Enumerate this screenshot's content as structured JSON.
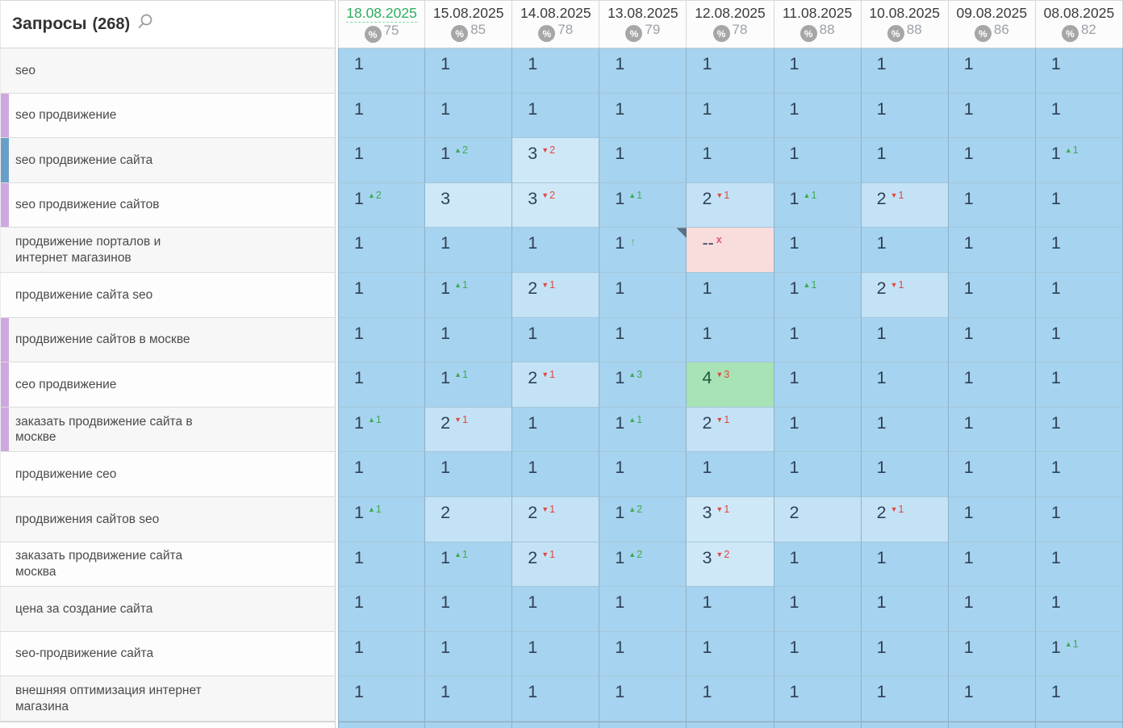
{
  "header": {
    "title": "Запросы",
    "count": "(268)",
    "search_icon": "magnifier"
  },
  "columns": [
    {
      "date": "18.08.2025",
      "percent": "75",
      "active": true
    },
    {
      "date": "15.08.2025",
      "percent": "85",
      "active": false
    },
    {
      "date": "14.08.2025",
      "percent": "78",
      "active": false
    },
    {
      "date": "13.08.2025",
      "percent": "79",
      "active": false
    },
    {
      "date": "12.08.2025",
      "percent": "78",
      "active": false
    },
    {
      "date": "11.08.2025",
      "percent": "88",
      "active": false
    },
    {
      "date": "10.08.2025",
      "percent": "88",
      "active": false
    },
    {
      "date": "09.08.2025",
      "percent": "86",
      "active": false
    },
    {
      "date": "08.08.2025",
      "percent": "82",
      "active": false
    }
  ],
  "colors": {
    "active_date_green": "#2fae60",
    "delta_up_green": "#3eaa4f",
    "delta_down_red": "#e2473d",
    "cell_pos1": "#a6d3ef",
    "cell_pos2": "#c4e2f6",
    "cell_pos3": "#cfe8f8",
    "cell_green": "#a8e3b5",
    "cell_pink": "#f9dcdc",
    "strip_purple": "#cda8e0",
    "strip_blue": "#689fc8",
    "note_marker": "#5b7083",
    "badge_gray": "#a6a6a6"
  },
  "rows": [
    {
      "label": "seo",
      "strip": null,
      "cells": [
        {
          "v": "1"
        },
        {
          "v": "1"
        },
        {
          "v": "1"
        },
        {
          "v": "1"
        },
        {
          "v": "1"
        },
        {
          "v": "1"
        },
        {
          "v": "1"
        },
        {
          "v": "1"
        },
        {
          "v": "1"
        }
      ]
    },
    {
      "label": "seo продвижение",
      "strip": "purple",
      "cells": [
        {
          "v": "1"
        },
        {
          "v": "1"
        },
        {
          "v": "1"
        },
        {
          "v": "1"
        },
        {
          "v": "1"
        },
        {
          "v": "1"
        },
        {
          "v": "1"
        },
        {
          "v": "1"
        },
        {
          "v": "1"
        }
      ]
    },
    {
      "label": "seo продвижение сайта",
      "strip": "blue",
      "cells": [
        {
          "v": "1"
        },
        {
          "v": "1",
          "up": "2"
        },
        {
          "v": "3",
          "down": "2"
        },
        {
          "v": "1"
        },
        {
          "v": "1"
        },
        {
          "v": "1"
        },
        {
          "v": "1"
        },
        {
          "v": "1"
        },
        {
          "v": "1",
          "up": "1"
        }
      ]
    },
    {
      "label": "seo продвижение сайтов",
      "strip": "purple",
      "cells": [
        {
          "v": "1",
          "up": "2"
        },
        {
          "v": "3"
        },
        {
          "v": "3",
          "down": "2"
        },
        {
          "v": "1",
          "up": "1"
        },
        {
          "v": "2",
          "down": "1"
        },
        {
          "v": "1",
          "up": "1"
        },
        {
          "v": "2",
          "down": "1"
        },
        {
          "v": "1"
        },
        {
          "v": "1"
        }
      ]
    },
    {
      "label": "продвижение порталов и\nинтернет магазинов",
      "strip": null,
      "cells": [
        {
          "v": "1"
        },
        {
          "v": "1"
        },
        {
          "v": "1"
        },
        {
          "v": "1",
          "arrow": true
        },
        {
          "v": "--",
          "x": true,
          "bg": "pink",
          "note": true
        },
        {
          "v": "1"
        },
        {
          "v": "1"
        },
        {
          "v": "1"
        },
        {
          "v": "1"
        }
      ]
    },
    {
      "label": "продвижение сайта seo",
      "strip": null,
      "cells": [
        {
          "v": "1"
        },
        {
          "v": "1",
          "up": "1"
        },
        {
          "v": "2",
          "down": "1"
        },
        {
          "v": "1"
        },
        {
          "v": "1"
        },
        {
          "v": "1",
          "up": "1"
        },
        {
          "v": "2",
          "down": "1"
        },
        {
          "v": "1"
        },
        {
          "v": "1"
        }
      ]
    },
    {
      "label": "продвижение сайтов в москве",
      "strip": "purple",
      "cells": [
        {
          "v": "1"
        },
        {
          "v": "1"
        },
        {
          "v": "1"
        },
        {
          "v": "1"
        },
        {
          "v": "1"
        },
        {
          "v": "1"
        },
        {
          "v": "1"
        },
        {
          "v": "1"
        },
        {
          "v": "1"
        }
      ]
    },
    {
      "label": "сео продвижение",
      "strip": "purple",
      "cells": [
        {
          "v": "1"
        },
        {
          "v": "1",
          "up": "1"
        },
        {
          "v": "2",
          "down": "1"
        },
        {
          "v": "1",
          "up": "3"
        },
        {
          "v": "4",
          "down": "3",
          "bg": "green"
        },
        {
          "v": "1"
        },
        {
          "v": "1"
        },
        {
          "v": "1"
        },
        {
          "v": "1"
        }
      ]
    },
    {
      "label": "заказать продвижение сайта в\nмоскве",
      "strip": "purple",
      "cells": [
        {
          "v": "1",
          "up": "1"
        },
        {
          "v": "2",
          "down": "1"
        },
        {
          "v": "1"
        },
        {
          "v": "1",
          "up": "1"
        },
        {
          "v": "2",
          "down": "1"
        },
        {
          "v": "1"
        },
        {
          "v": "1"
        },
        {
          "v": "1"
        },
        {
          "v": "1"
        }
      ]
    },
    {
      "label": "продвижение сео",
      "strip": null,
      "cells": [
        {
          "v": "1"
        },
        {
          "v": "1"
        },
        {
          "v": "1"
        },
        {
          "v": "1"
        },
        {
          "v": "1"
        },
        {
          "v": "1"
        },
        {
          "v": "1"
        },
        {
          "v": "1"
        },
        {
          "v": "1"
        }
      ]
    },
    {
      "label": "продвижения сайтов seo",
      "strip": null,
      "cells": [
        {
          "v": "1",
          "up": "1"
        },
        {
          "v": "2"
        },
        {
          "v": "2",
          "down": "1"
        },
        {
          "v": "1",
          "up": "2"
        },
        {
          "v": "3",
          "down": "1"
        },
        {
          "v": "2"
        },
        {
          "v": "2",
          "down": "1"
        },
        {
          "v": "1"
        },
        {
          "v": "1"
        }
      ]
    },
    {
      "label": "заказать продвижение сайта\nмосква",
      "strip": null,
      "cells": [
        {
          "v": "1"
        },
        {
          "v": "1",
          "up": "1"
        },
        {
          "v": "2",
          "down": "1"
        },
        {
          "v": "1",
          "up": "2"
        },
        {
          "v": "3",
          "down": "2"
        },
        {
          "v": "1"
        },
        {
          "v": "1"
        },
        {
          "v": "1"
        },
        {
          "v": "1"
        }
      ]
    },
    {
      "label": "цена за создание сайта",
      "strip": null,
      "cells": [
        {
          "v": "1"
        },
        {
          "v": "1"
        },
        {
          "v": "1"
        },
        {
          "v": "1"
        },
        {
          "v": "1"
        },
        {
          "v": "1"
        },
        {
          "v": "1"
        },
        {
          "v": "1"
        },
        {
          "v": "1"
        }
      ]
    },
    {
      "label": "seo-продвижение сайта",
      "strip": null,
      "cells": [
        {
          "v": "1"
        },
        {
          "v": "1"
        },
        {
          "v": "1"
        },
        {
          "v": "1"
        },
        {
          "v": "1"
        },
        {
          "v": "1"
        },
        {
          "v": "1"
        },
        {
          "v": "1"
        },
        {
          "v": "1",
          "up": "1"
        }
      ]
    },
    {
      "label": "внешняя оптимизация интернет\nмагазина",
      "strip": null,
      "cells": [
        {
          "v": "1"
        },
        {
          "v": "1"
        },
        {
          "v": "1"
        },
        {
          "v": "1"
        },
        {
          "v": "1"
        },
        {
          "v": "1"
        },
        {
          "v": "1"
        },
        {
          "v": "1"
        },
        {
          "v": "1"
        }
      ]
    }
  ]
}
